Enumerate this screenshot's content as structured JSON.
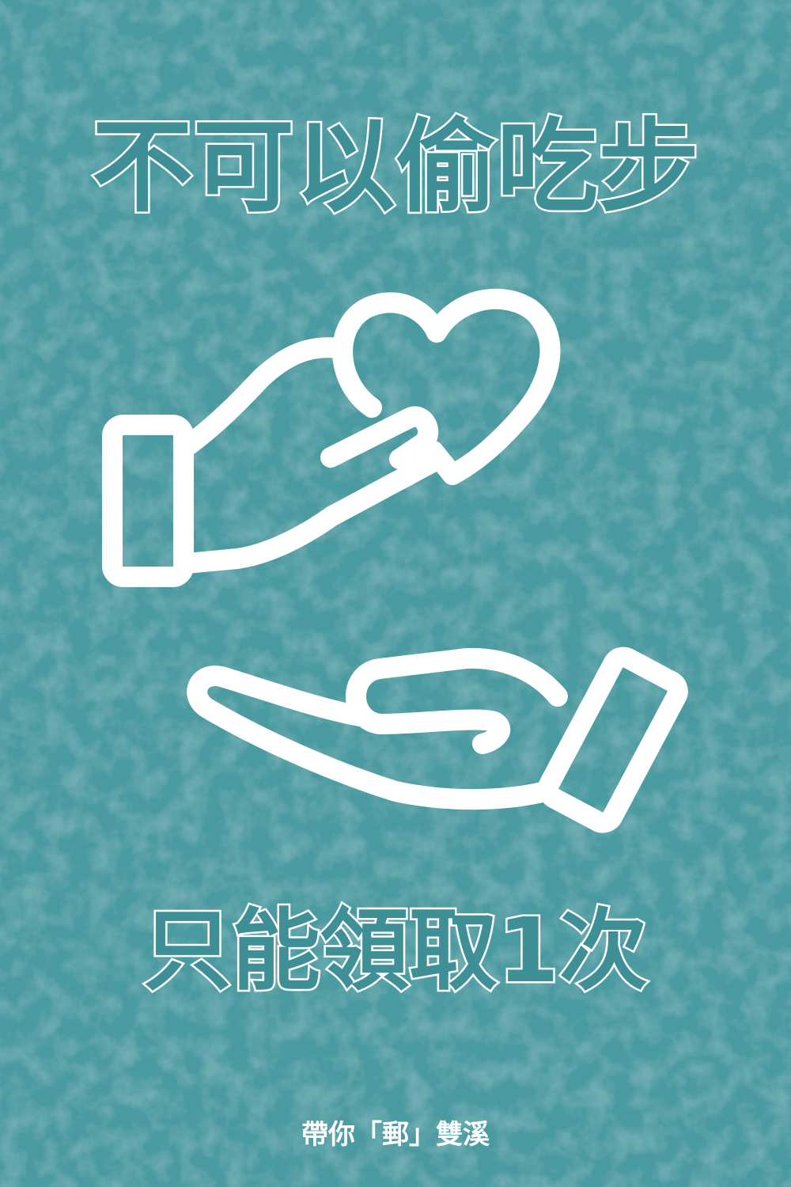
{
  "header": {
    "title": "不可以偷吃步"
  },
  "body": {
    "subtitle": "只能領取1次"
  },
  "footer": {
    "text": "帶你「郵」雙溪"
  }
}
